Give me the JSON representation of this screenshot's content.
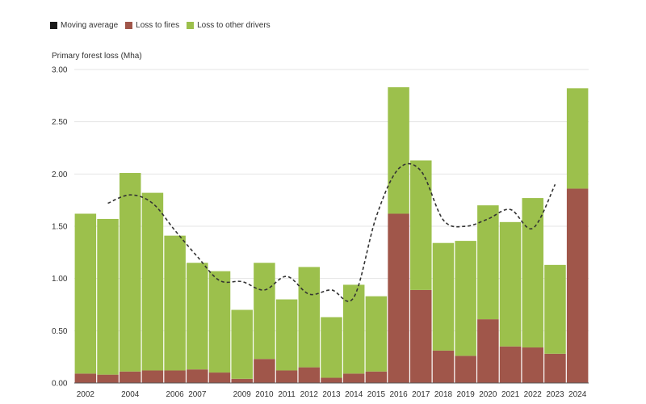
{
  "chart_data": {
    "type": "bar",
    "stacked": true,
    "ylabel": "Primary forest loss (Mha)",
    "ylim": [
      0,
      3.0
    ],
    "yticks": [
      "0.00",
      "0.50",
      "1.00",
      "1.50",
      "2.00",
      "2.50",
      "3.00"
    ],
    "categories": [
      "2002",
      "2003",
      "2004",
      "2005",
      "2006",
      "2007",
      "2008",
      "2009",
      "2010",
      "2011",
      "2012",
      "2013",
      "2014",
      "2015",
      "2016",
      "2017",
      "2018",
      "2019",
      "2020",
      "2021",
      "2022",
      "2023",
      "2024"
    ],
    "xtick_labels": [
      "2002",
      "",
      "2004",
      "",
      "2006",
      "2007",
      "",
      "2009",
      "2010",
      "2011",
      "2012",
      "2013",
      "2014",
      "2015",
      "2016",
      "2017",
      "2018",
      "2019",
      "2020",
      "2021",
      "2022",
      "2023",
      "2024"
    ],
    "series": [
      {
        "name": "Loss to fires",
        "color": "#a0564a",
        "values": [
          0.09,
          0.08,
          0.11,
          0.12,
          0.12,
          0.13,
          0.1,
          0.04,
          0.23,
          0.12,
          0.15,
          0.05,
          0.09,
          0.11,
          1.62,
          0.89,
          0.31,
          0.26,
          0.61,
          0.35,
          0.34,
          0.28,
          1.86
        ]
      },
      {
        "name": "Loss to other drivers",
        "color": "#9cc04c",
        "values": [
          1.53,
          1.49,
          1.9,
          1.7,
          1.29,
          1.02,
          0.97,
          0.66,
          0.92,
          0.68,
          0.96,
          0.58,
          0.85,
          0.72,
          1.21,
          1.24,
          1.03,
          1.1,
          1.09,
          1.19,
          1.43,
          0.85,
          0.96
        ]
      }
    ],
    "moving_average": {
      "name": "Moving average",
      "color": "#333333",
      "values": [
        null,
        1.72,
        1.8,
        1.72,
        1.46,
        1.21,
        0.98,
        0.97,
        0.89,
        1.02,
        0.85,
        0.89,
        0.82,
        1.59,
        2.05,
        2.03,
        1.56,
        1.5,
        1.57,
        1.66,
        1.48,
        1.9,
        null
      ]
    },
    "legend": [
      {
        "label": "Moving average",
        "color": "#1a1a1a"
      },
      {
        "label": "Loss to fires",
        "color": "#a0564a"
      },
      {
        "label": "Loss to other drivers",
        "color": "#9cc04c"
      }
    ],
    "grid": true,
    "legend_position": "top-left"
  }
}
